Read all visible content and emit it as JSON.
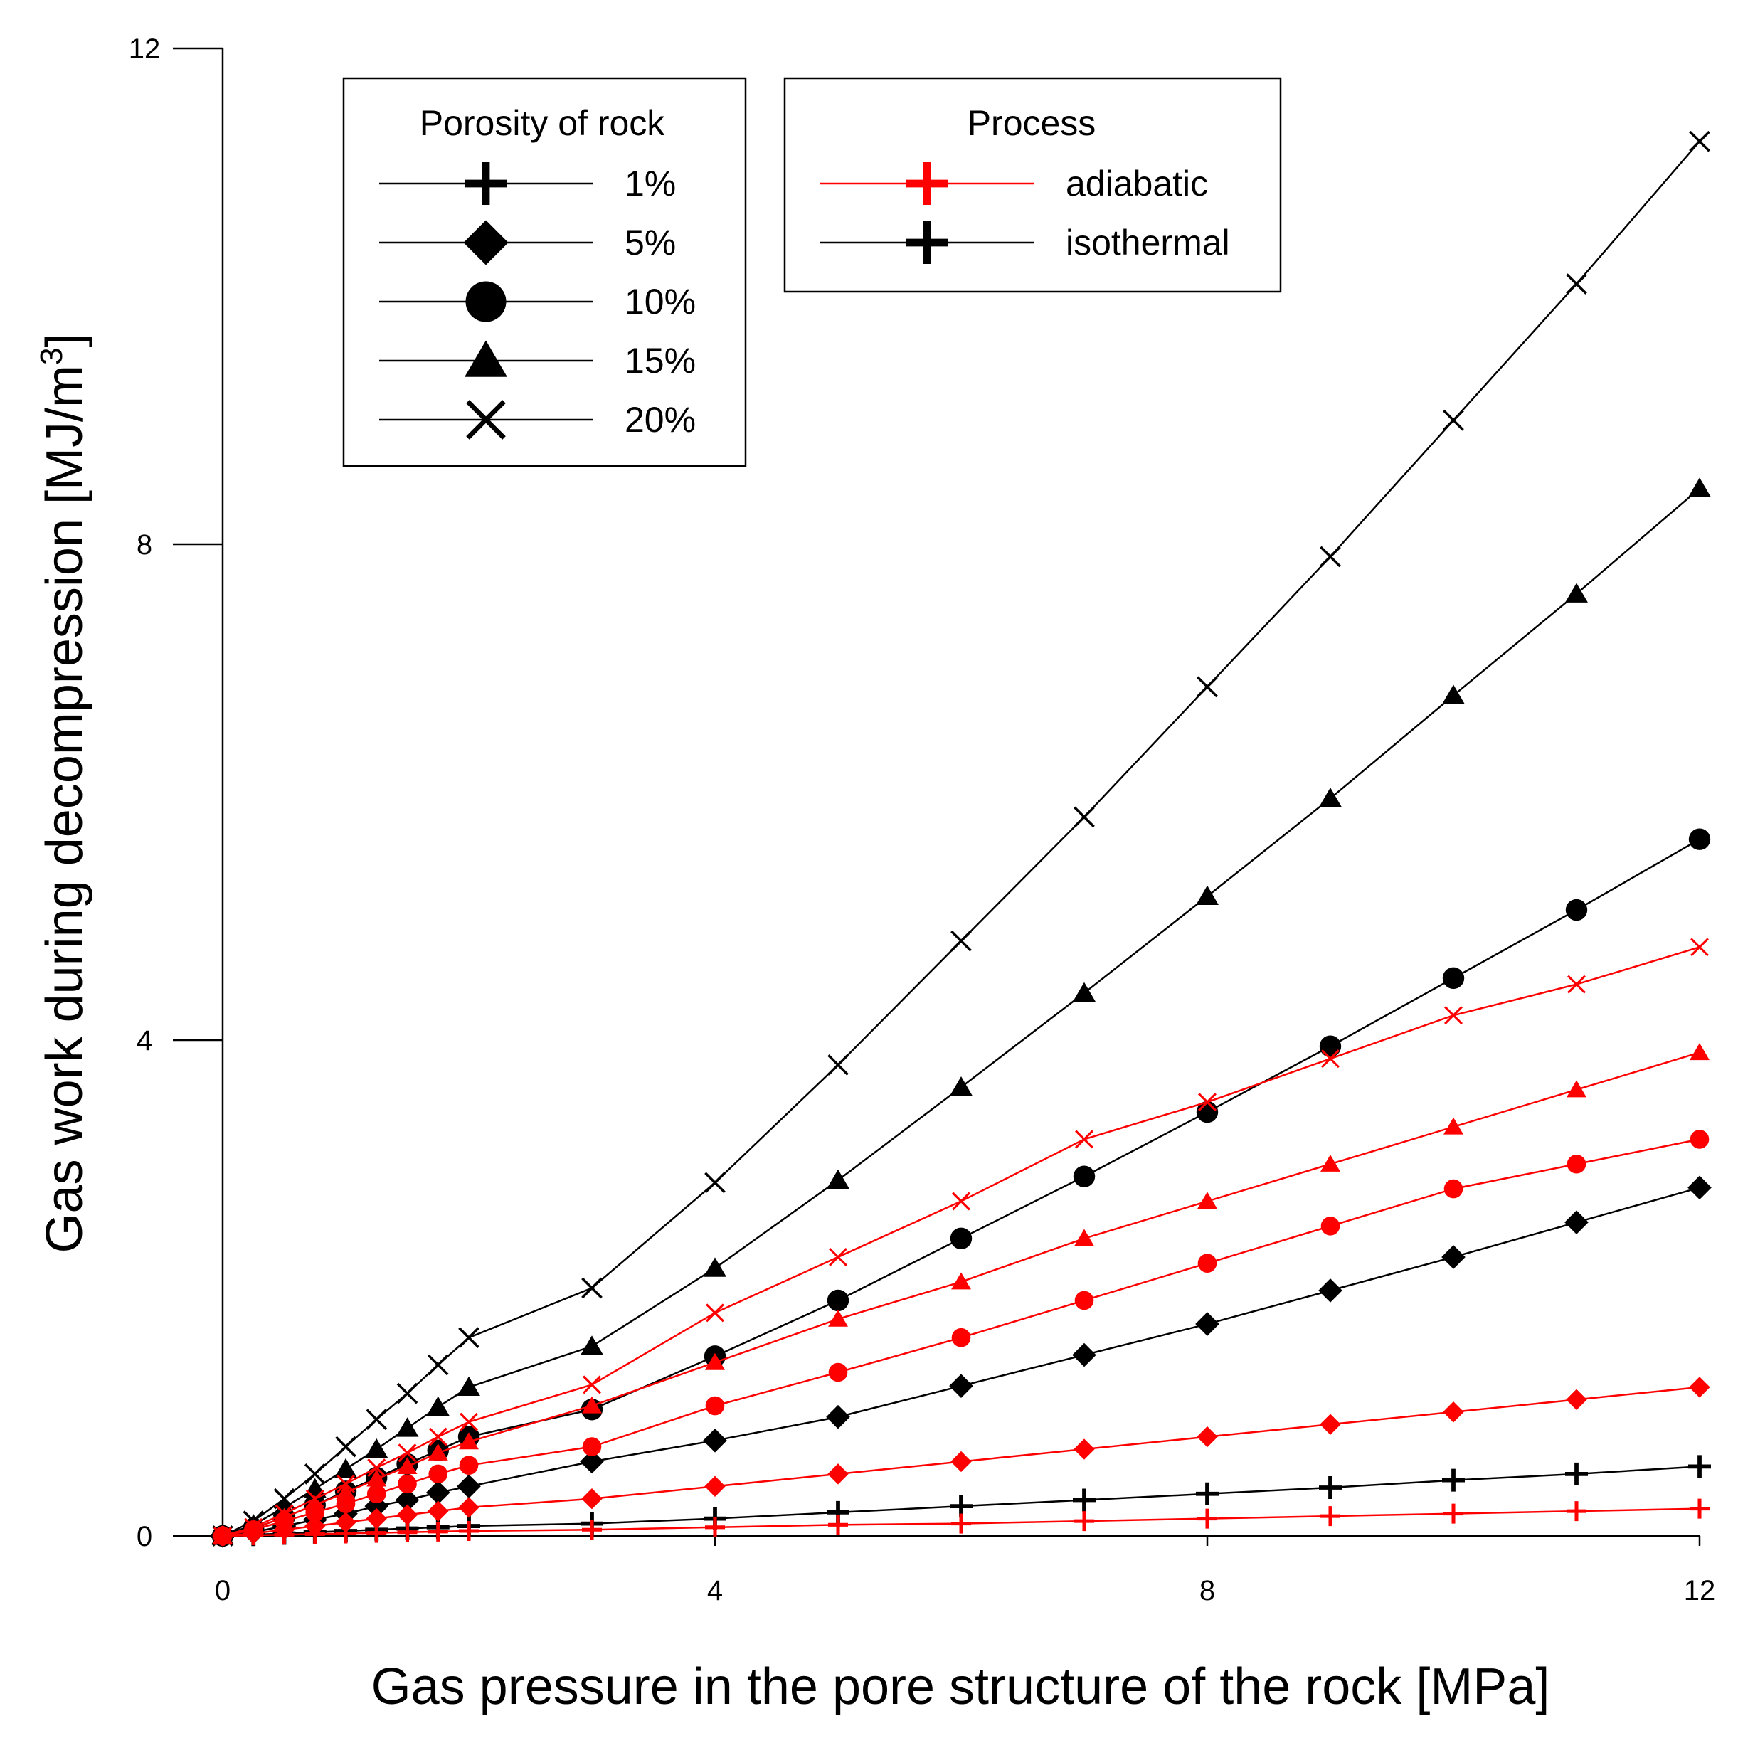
{
  "chart_data": {
    "type": "line",
    "xlabel": "Gas pressure in the pore structure of the rock [MPa]",
    "ylabel_main": "Gas work during decompression [MJ/m",
    "ylabel_sup": "3",
    "ylabel_end": "]",
    "xlim": [
      0,
      12
    ],
    "ylim": [
      0,
      12
    ],
    "xticks": [
      0,
      4,
      8,
      12
    ],
    "yticks": [
      0,
      4,
      8,
      12
    ],
    "xtick_labels": [
      "0",
      "4",
      "8",
      "12"
    ],
    "ytick_labels": [
      "0",
      "4",
      "8",
      "12"
    ],
    "x": [
      0,
      0.25,
      0.5,
      0.75,
      1,
      1.25,
      1.5,
      1.75,
      2,
      3,
      4,
      5,
      6,
      7,
      8,
      9,
      10,
      11,
      12
    ],
    "colors": {
      "adiabatic": "#ff0000",
      "isothermal": "#000000"
    },
    "series": [
      {
        "name": "isothermal 1%",
        "process": "isothermal",
        "porosity": "1%",
        "marker": "plus",
        "values": [
          0,
          0.01,
          0.02,
          0.03,
          0.04,
          0.05,
          0.06,
          0.07,
          0.08,
          0.1,
          0.14,
          0.19,
          0.24,
          0.29,
          0.34,
          0.39,
          0.45,
          0.5,
          0.56
        ]
      },
      {
        "name": "isothermal 5%",
        "process": "isothermal",
        "porosity": "5%",
        "marker": "diamond",
        "values": [
          0,
          0.03,
          0.08,
          0.13,
          0.18,
          0.24,
          0.29,
          0.35,
          0.4,
          0.6,
          0.77,
          0.96,
          1.21,
          1.46,
          1.71,
          1.98,
          2.25,
          2.53,
          2.81
        ]
      },
      {
        "name": "isothermal 10%",
        "process": "isothermal",
        "porosity": "10%",
        "marker": "circle",
        "values": [
          0,
          0.06,
          0.15,
          0.25,
          0.36,
          0.47,
          0.58,
          0.69,
          0.8,
          1.02,
          1.45,
          1.9,
          2.4,
          2.9,
          3.42,
          3.95,
          4.5,
          5.05,
          5.62
        ]
      },
      {
        "name": "isothermal 15%",
        "process": "isothermal",
        "porosity": "15%",
        "marker": "triangle",
        "values": [
          0,
          0.09,
          0.23,
          0.38,
          0.54,
          0.7,
          0.87,
          1.04,
          1.2,
          1.53,
          2.16,
          2.87,
          3.62,
          4.38,
          5.16,
          5.95,
          6.78,
          7.6,
          8.45
        ]
      },
      {
        "name": "isothermal 20%",
        "process": "isothermal",
        "porosity": "20%",
        "marker": "x",
        "values": [
          0,
          0.12,
          0.3,
          0.5,
          0.72,
          0.94,
          1.15,
          1.38,
          1.6,
          2.0,
          2.85,
          3.8,
          4.8,
          5.8,
          6.85,
          7.9,
          9.0,
          10.1,
          11.25
        ]
      },
      {
        "name": "adiabatic 1%",
        "process": "adiabatic",
        "porosity": "1%",
        "marker": "plus",
        "values": [
          0,
          0.005,
          0.01,
          0.015,
          0.02,
          0.025,
          0.03,
          0.035,
          0.04,
          0.05,
          0.07,
          0.09,
          0.1,
          0.12,
          0.14,
          0.16,
          0.18,
          0.2,
          0.22
        ]
      },
      {
        "name": "adiabatic 5%",
        "process": "adiabatic",
        "porosity": "5%",
        "marker": "diamond",
        "values": [
          0,
          0.02,
          0.05,
          0.08,
          0.11,
          0.14,
          0.17,
          0.2,
          0.23,
          0.3,
          0.4,
          0.5,
          0.6,
          0.7,
          0.8,
          0.9,
          1.0,
          1.1,
          1.2
        ]
      },
      {
        "name": "adiabatic 10%",
        "process": "adiabatic",
        "porosity": "10%",
        "marker": "circle",
        "values": [
          0,
          0.05,
          0.12,
          0.19,
          0.26,
          0.34,
          0.42,
          0.5,
          0.57,
          0.72,
          1.05,
          1.32,
          1.6,
          1.9,
          2.2,
          2.5,
          2.8,
          3.0,
          3.2
        ]
      },
      {
        "name": "adiabatic 15%",
        "process": "adiabatic",
        "porosity": "15%",
        "marker": "triangle",
        "values": [
          0,
          0.06,
          0.15,
          0.25,
          0.35,
          0.46,
          0.56,
          0.67,
          0.76,
          1.05,
          1.4,
          1.75,
          2.05,
          2.4,
          2.7,
          3.0,
          3.3,
          3.6,
          3.9
        ]
      },
      {
        "name": "adiabatic 20%",
        "process": "adiabatic",
        "porosity": "20%",
        "marker": "x",
        "values": [
          0,
          0.07,
          0.18,
          0.3,
          0.42,
          0.55,
          0.67,
          0.8,
          0.92,
          1.22,
          1.8,
          2.25,
          2.7,
          3.2,
          3.5,
          3.85,
          4.2,
          4.45,
          4.75
        ]
      }
    ],
    "legends": [
      {
        "title": "Porosity of rock",
        "entries": [
          {
            "label": "1%",
            "marker": "plus",
            "color": "#000000"
          },
          {
            "label": "5%",
            "marker": "diamond",
            "color": "#000000"
          },
          {
            "label": "10%",
            "marker": "circle",
            "color": "#000000"
          },
          {
            "label": "15%",
            "marker": "triangle",
            "color": "#000000"
          },
          {
            "label": "20%",
            "marker": "x",
            "color": "#000000"
          }
        ]
      },
      {
        "title": "Process",
        "entries": [
          {
            "label": "adiabatic",
            "marker": "plus",
            "color": "#ff0000"
          },
          {
            "label": "isothermal",
            "marker": "plus",
            "color": "#000000"
          }
        ]
      }
    ]
  }
}
